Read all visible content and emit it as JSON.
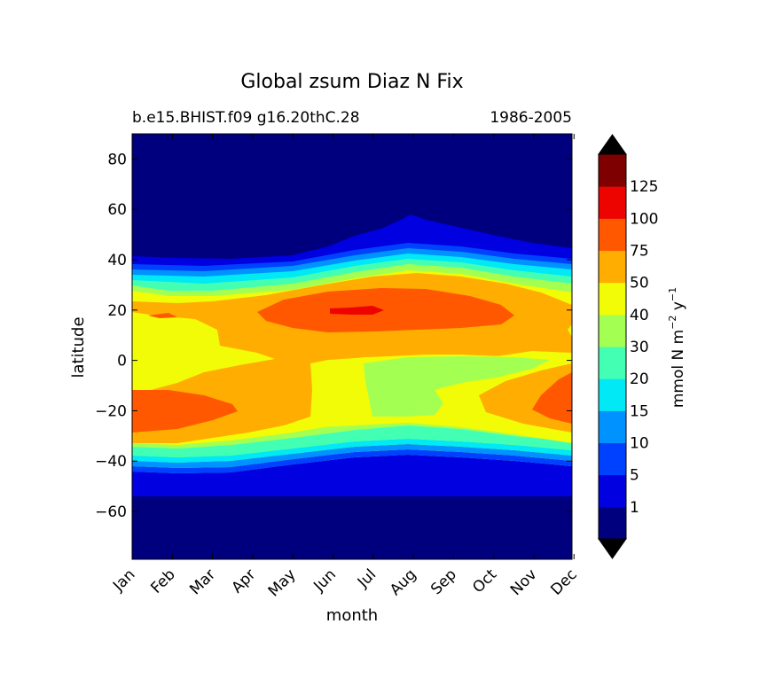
{
  "chart_data": {
    "type": "heatmap",
    "title": "Global zsum Diaz N Fix",
    "subtitle_left": "b.e15.BHIST.f09 g16.20thC.28",
    "subtitle_right": "1986-2005",
    "xlabel": "month",
    "ylabel": "latitude",
    "x": [
      "Jan",
      "Feb",
      "Mar",
      "Apr",
      "May",
      "Jun",
      "Jul",
      "Aug",
      "Sep",
      "Oct",
      "Nov",
      "Dec"
    ],
    "x_ticks": [
      "Jan",
      "Feb",
      "Mar",
      "Apr",
      "May",
      "Jun",
      "Jul",
      "Aug",
      "Sep",
      "Oct",
      "Nov",
      "Dec"
    ],
    "ylim": [
      -79,
      90
    ],
    "y_ticks": [
      -60,
      -40,
      -20,
      0,
      20,
      40,
      60,
      80
    ],
    "y_tick_labels": [
      "−60",
      "−40",
      "−20",
      "0",
      "20",
      "40",
      "60",
      "80"
    ],
    "colorbar": {
      "label_main": "mmol N m",
      "label_exp1": "−2",
      "label_mid": " y",
      "label_exp2": "−1",
      "levels": [
        0,
        1,
        5,
        10,
        15,
        20,
        30,
        40,
        50,
        75,
        100,
        125,
        150
      ],
      "tick_labels": [
        "1",
        "5",
        "10",
        "15",
        "20",
        "30",
        "40",
        "50",
        "75",
        "100",
        "125"
      ],
      "colors": [
        "#00007f",
        "#0000e0",
        "#0041ff",
        "#0093ff",
        "#00e9f5",
        "#43ffb4",
        "#a4ff53",
        "#f1fc06",
        "#ffad00",
        "#ff5800",
        "#ed0300",
        "#7f0000"
      ],
      "extend_min_color": "#000000",
      "extend_max_color": "#000000"
    },
    "regions_value_ranges": [
      {
        "name": "polar and high latitudes",
        "range": "0-1"
      },
      {
        "name": "northern frontal band ~40N",
        "range": "1-50"
      },
      {
        "name": "subtropical belt 0-30N",
        "range": "50-75"
      },
      {
        "name": "NH summer maximum ~20N Jun-Sep",
        "range": "75-100"
      },
      {
        "name": "peak near 20N Jul",
        "range": "100-125"
      },
      {
        "name": "southern subtropics Jan-Feb ~20S",
        "range": "75-100"
      },
      {
        "name": "southern summer Nov-Dec ~20S",
        "range": "75-100"
      },
      {
        "name": "equatorial band Jan-Apr",
        "range": "40-50"
      },
      {
        "name": "southern tropics Jun-Sep",
        "range": "30-40"
      },
      {
        "name": "southern frontal band ~-35S",
        "range": "1-40"
      }
    ]
  }
}
